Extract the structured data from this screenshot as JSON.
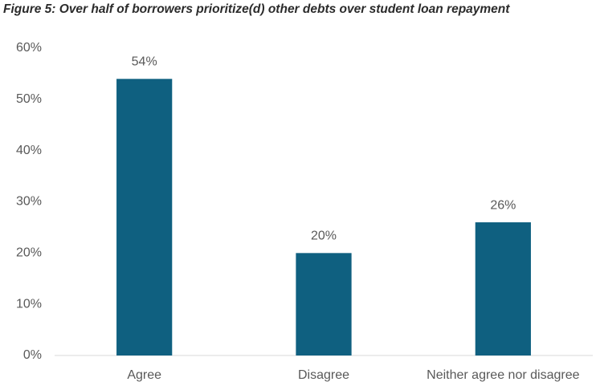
{
  "chart_data": {
    "type": "bar",
    "title": "Figure 5: Over half of borrowers prioritize(d) other debts over student loan repayment",
    "categories": [
      "Agree",
      "Disagree",
      "Neither agree nor disagree"
    ],
    "values": [
      54,
      20,
      26
    ],
    "value_labels": [
      "54%",
      "20%",
      "26%"
    ],
    "color": "#0f6080",
    "ylim": [
      0,
      60
    ],
    "yticks": [
      {
        "value": 0,
        "label": "0%"
      },
      {
        "value": 10,
        "label": "10%"
      },
      {
        "value": 20,
        "label": "20%"
      },
      {
        "value": 30,
        "label": "30%"
      },
      {
        "value": 40,
        "label": "40%"
      },
      {
        "value": 50,
        "label": "50%"
      },
      {
        "value": 60,
        "label": "60%"
      }
    ],
    "grid": false
  }
}
